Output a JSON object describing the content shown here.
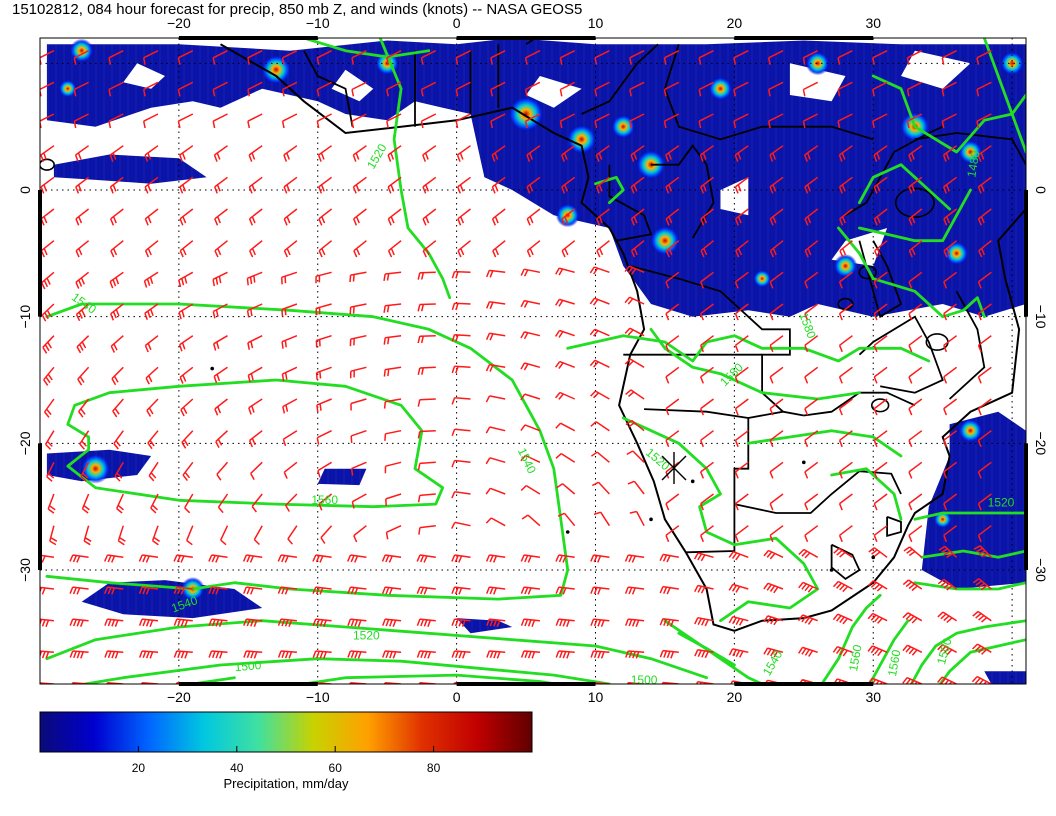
{
  "title": "15102812, 084 hour forecast for precip, 850 mb Z, and winds (knots) -- NASA GEOS5",
  "map": {
    "lon_range": [
      -30,
      41
    ],
    "lat_range": [
      12,
      -39
    ],
    "lon_ticks": [
      {
        "value": -20,
        "label": "−20"
      },
      {
        "value": -10,
        "label": "−10"
      },
      {
        "value": 0,
        "label": "0"
      },
      {
        "value": 10,
        "label": "10"
      },
      {
        "value": 20,
        "label": "20"
      },
      {
        "value": 30,
        "label": "30"
      }
    ],
    "lat_ticks": [
      {
        "value": 0,
        "label": "0"
      },
      {
        "value": -10,
        "label": "−10"
      },
      {
        "value": -20,
        "label": "−20"
      },
      {
        "value": -30,
        "label": "−30"
      }
    ],
    "grid": "dotted",
    "colors": {
      "contour": "#22dd22",
      "barb": "#ff1a1a",
      "coast": "#000000"
    },
    "contour_labels": [
      {
        "text": "1520",
        "lon": -5.5,
        "lat": 2.5,
        "rot": -60
      },
      {
        "text": "1540",
        "lon": -27,
        "lat": -9.2,
        "rot": 35
      },
      {
        "text": "1540",
        "lon": 4.8,
        "lat": -21.5,
        "rot": 65
      },
      {
        "text": "1560",
        "lon": -9.5,
        "lat": -24.8,
        "rot": 0
      },
      {
        "text": "1520",
        "lon": 14.3,
        "lat": -21.5,
        "rot": 40
      },
      {
        "text": "1580",
        "lon": 20,
        "lat": -14.8,
        "rot": -45
      },
      {
        "text": "1580",
        "lon": 25,
        "lat": -10.8,
        "rot": 70
      },
      {
        "text": "1540",
        "lon": -19.5,
        "lat": -33,
        "rot": -20
      },
      {
        "text": "1520",
        "lon": -6.5,
        "lat": -35.5,
        "rot": 0
      },
      {
        "text": "1500",
        "lon": -15,
        "lat": -37.9,
        "rot": -5
      },
      {
        "text": "1500",
        "lon": 13.5,
        "lat": -39,
        "rot": 0
      },
      {
        "text": "1540",
        "lon": 4.8,
        "lat": -39.5,
        "rot": 0
      },
      {
        "text": "1560",
        "lon": 29,
        "lat": -37,
        "rot": -80
      },
      {
        "text": "1540",
        "lon": 23,
        "lat": -37.5,
        "rot": -60
      },
      {
        "text": "1560",
        "lon": 31.8,
        "lat": -37.4,
        "rot": -80
      },
      {
        "text": "1500",
        "lon": 35.4,
        "lat": -36.5,
        "rot": -75
      },
      {
        "text": "1520",
        "lon": 39.2,
        "lat": -25,
        "rot": 0
      },
      {
        "text": "1480",
        "lon": 37.5,
        "lat": 2,
        "rot": -80
      }
    ]
  },
  "colorbar": {
    "title": "Precipitation, mm/day",
    "min": 0,
    "max": 100,
    "ticks": [
      {
        "value": 20,
        "label": "20"
      },
      {
        "value": 40,
        "label": "40"
      },
      {
        "value": 60,
        "label": "60"
      },
      {
        "value": 80,
        "label": "80"
      }
    ],
    "stops": [
      "#0a0a78",
      "#0000d0",
      "#0066ff",
      "#00c8e0",
      "#40e0a0",
      "#c8d200",
      "#ffa000",
      "#e03000",
      "#c00000",
      "#600000"
    ]
  }
}
